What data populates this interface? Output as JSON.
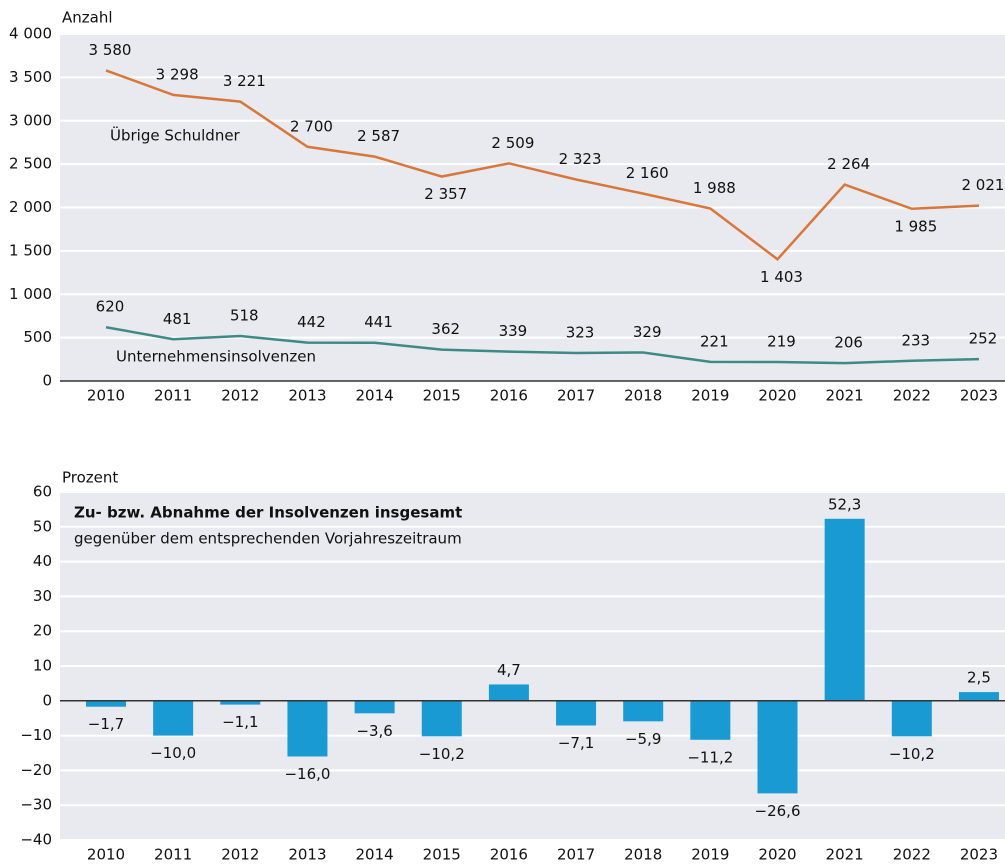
{
  "chart_data": [
    {
      "type": "line",
      "ylabel": "Anzahl",
      "categories": [
        "2010",
        "2011",
        "2012",
        "2013",
        "2014",
        "2015",
        "2016",
        "2017",
        "2018",
        "2019",
        "2020",
        "2021",
        "2022",
        "2023"
      ],
      "series": [
        {
          "name": "Übrige Schuldner",
          "color": "#d9773a",
          "values": [
            3580,
            3298,
            3221,
            2700,
            2587,
            2357,
            2509,
            2323,
            2160,
            1988,
            1403,
            2264,
            1985,
            2021
          ],
          "value_labels": [
            "3 580",
            "3 298",
            "3 221",
            "2 700",
            "2 587",
            "2 357",
            "2 509",
            "2 323",
            "2 160",
            "1 988",
            "1 403",
            "2 264",
            "1 985",
            "2 021"
          ]
        },
        {
          "name": "Unternehmensinsolvenzen",
          "color": "#3d8a86",
          "values": [
            620,
            481,
            518,
            442,
            441,
            362,
            339,
            323,
            329,
            221,
            219,
            206,
            233,
            252
          ]
        }
      ],
      "ylim": [
        0,
        4000
      ],
      "yticks": [
        0,
        500,
        {
          "value": 1000,
          "label": "1 000"
        },
        {
          "value": 1500,
          "label": "1 500"
        },
        {
          "value": 2000,
          "label": "2 000"
        },
        {
          "value": 2500,
          "label": "2 500"
        },
        {
          "value": 3000,
          "label": "3 000"
        },
        {
          "value": 3500,
          "label": "3 500"
        },
        {
          "value": 4000,
          "label": "4 000"
        }
      ],
      "grid": true
    },
    {
      "type": "bar",
      "ylabel": "Prozent",
      "title": "Zu- bzw. Abnahme der Insolvenzen insgesamt",
      "subtitle": "gegenüber dem entsprechenden Vorjahreszeitraum",
      "categories": [
        "2010",
        "2011",
        "2012",
        "2013",
        "2014",
        "2015",
        "2016",
        "2017",
        "2018",
        "2019",
        "2020",
        "2021",
        "2022",
        "2023"
      ],
      "color": "#1a9ad3",
      "values": [
        -1.7,
        -10.0,
        -1.1,
        -16.0,
        -3.6,
        -10.2,
        4.7,
        -7.1,
        -5.9,
        -11.2,
        -26.6,
        52.3,
        -10.2,
        2.5
      ],
      "value_labels": [
        "−1,7",
        "−10,0",
        "−1,1",
        "−16,0",
        "−3,6",
        "−10,2",
        "4,7",
        "−7,1",
        "−5,9",
        "−11,2",
        "−26,6",
        "52,3",
        "−10,2",
        "2,5"
      ],
      "ylim": [
        -40,
        60
      ],
      "yticks": [
        {
          "value": -40,
          "label": "−40"
        },
        {
          "value": -30,
          "label": "−30"
        },
        {
          "value": -20,
          "label": "−20"
        },
        {
          "value": -10,
          "label": "−10"
        },
        0,
        10,
        20,
        30,
        40,
        50,
        60
      ],
      "grid": true
    }
  ]
}
